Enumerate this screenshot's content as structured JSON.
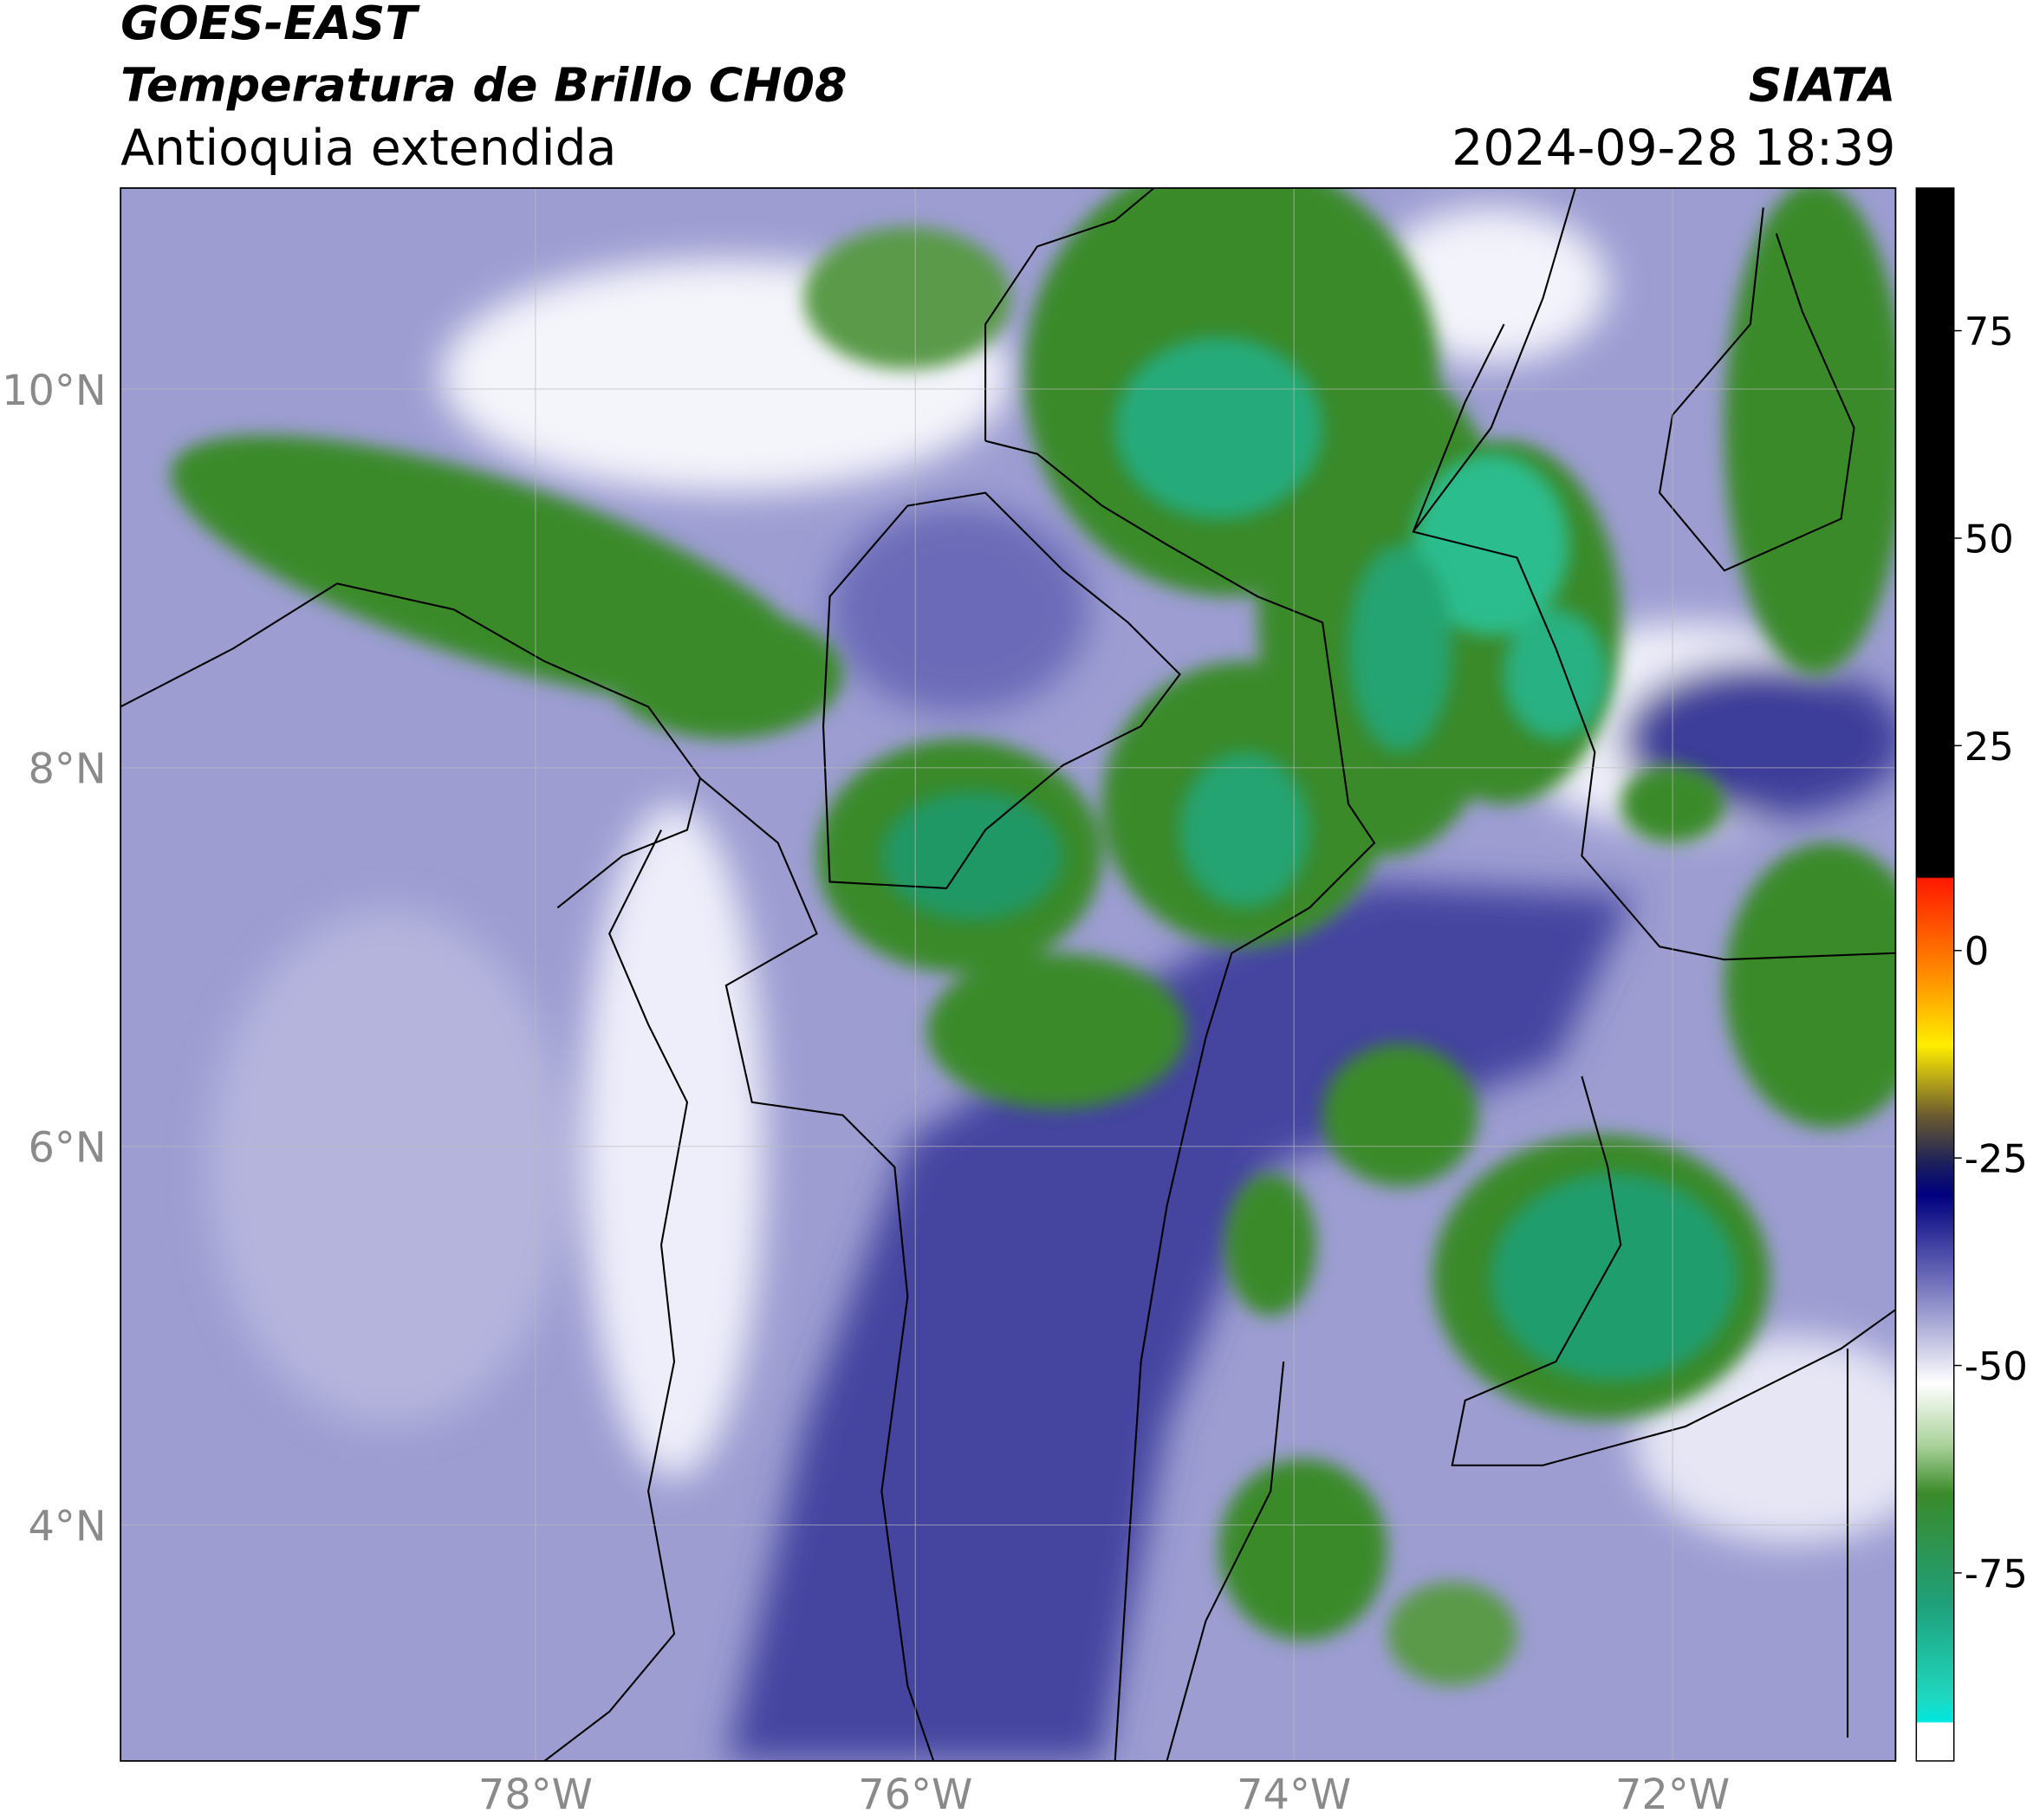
{
  "header": {
    "title_1": "GOES-EAST",
    "title_2": "Temperatura de Brillo CH08",
    "subtitle": "Antioquia extendida",
    "source": "SIATA",
    "datetime": "2024-09-28 18:39"
  },
  "map": {
    "lat_labels": [
      "10°N",
      "8°N",
      "6°N",
      "4°N"
    ],
    "lon_labels": [
      "78°W",
      "76°W",
      "74°W",
      "72°W"
    ]
  },
  "colorbar": {
    "tick_labels": [
      "75",
      "50",
      "25",
      "0",
      "-25",
      "-50",
      "-75"
    ]
  }
}
